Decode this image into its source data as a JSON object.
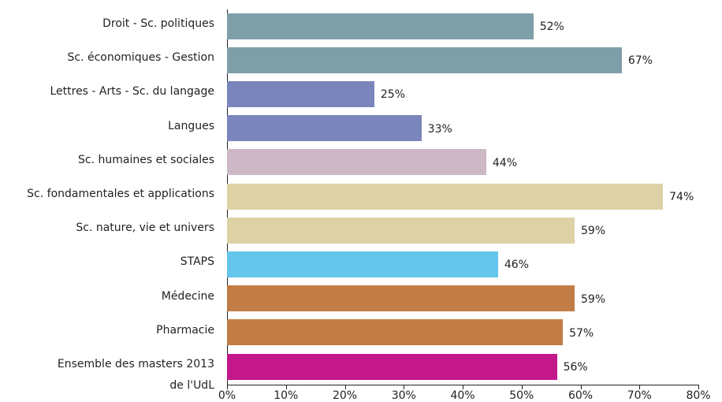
{
  "chart_data": {
    "type": "bar",
    "orientation": "horizontal",
    "categories": [
      "Droit - Sc. politiques",
      "Sc. économiques - Gestion",
      "Lettres - Arts - Sc. du langage",
      "Langues",
      "Sc. humaines et sociales",
      "Sc. fondamentales et applications",
      "Sc. nature, vie et univers",
      "STAPS",
      "Médecine",
      "Pharmacie",
      "Ensemble des masters 2013\nde l'UdL"
    ],
    "values": [
      52,
      67,
      25,
      33,
      44,
      74,
      59,
      46,
      59,
      57,
      56
    ],
    "value_labels": [
      "52%",
      "67%",
      "25%",
      "33%",
      "44%",
      "74%",
      "59%",
      "46%",
      "59%",
      "57%",
      "56%"
    ],
    "colors": [
      "#7f9fa8",
      "#7f9fa8",
      "#7a86bb",
      "#7a86bb",
      "#cdb8c6",
      "#ddd2a6",
      "#ddd2a6",
      "#63c6ea",
      "#c27c45",
      "#c27c45",
      "#c4178a"
    ],
    "xlim": [
      0,
      80
    ],
    "xticks": [
      {
        "value": 0,
        "label": "0%"
      },
      {
        "value": 10,
        "label": "10%"
      },
      {
        "value": 20,
        "label": "20%"
      },
      {
        "value": 30,
        "label": "30%"
      },
      {
        "value": 40,
        "label": "40%"
      },
      {
        "value": 50,
        "label": "50%"
      },
      {
        "value": 60,
        "label": "60%"
      },
      {
        "value": 70,
        "label": "70%"
      },
      {
        "value": 80,
        "label": "80%"
      }
    ]
  }
}
